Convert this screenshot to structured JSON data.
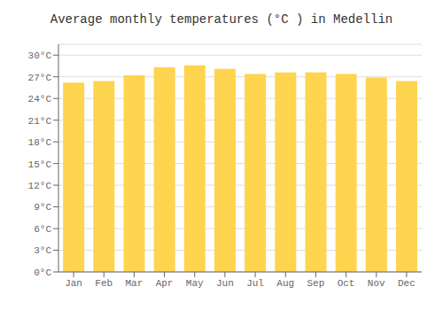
{
  "chart_data": {
    "type": "bar",
    "title": "Average monthly temperatures (°C ) in Medellin",
    "categories": [
      "Jan",
      "Feb",
      "Mar",
      "Apr",
      "May",
      "Jun",
      "Jul",
      "Aug",
      "Sep",
      "Oct",
      "Nov",
      "Dec"
    ],
    "values": [
      26.2,
      26.4,
      27.2,
      28.3,
      28.6,
      28.1,
      27.4,
      27.6,
      27.6,
      27.4,
      26.9,
      26.4
    ],
    "color": "#FFD44E",
    "ylim": [
      0,
      31.5
    ],
    "yticks": [
      {
        "value": 0,
        "label": "0°C"
      },
      {
        "value": 3,
        "label": "3°C"
      },
      {
        "value": 6,
        "label": "6°C"
      },
      {
        "value": 9,
        "label": "9°C"
      },
      {
        "value": 12,
        "label": "12°C"
      },
      {
        "value": 15,
        "label": "15°C"
      },
      {
        "value": 18,
        "label": "18°C"
      },
      {
        "value": 21,
        "label": "21°C"
      },
      {
        "value": 24,
        "label": "24°C"
      },
      {
        "value": 27,
        "label": "27°C"
      },
      {
        "value": 30,
        "label": "30°C"
      }
    ],
    "grid": true
  }
}
